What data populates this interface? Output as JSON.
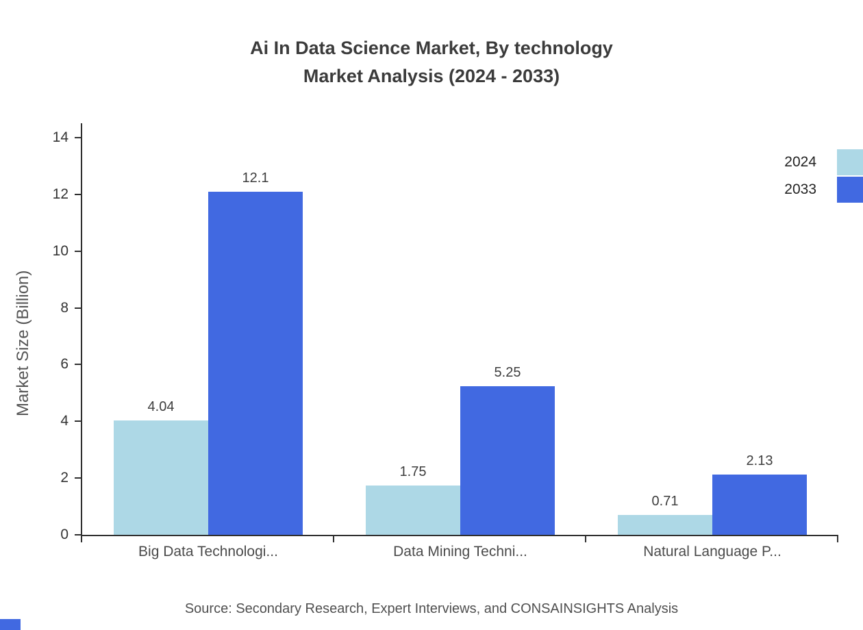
{
  "title": {
    "line1": "Ai In Data Science Market, By technology",
    "line2": "Market Analysis (2024 - 2033)"
  },
  "chart_data": {
    "type": "bar",
    "categories": [
      "Big Data Technologi...",
      "Data Mining Techni...",
      "Natural Language P..."
    ],
    "series": [
      {
        "name": "2024",
        "color": "#add8e6",
        "values": [
          4.04,
          1.75,
          0.71
        ]
      },
      {
        "name": "2033",
        "color": "#4169e1",
        "values": [
          12.1,
          5.25,
          2.13
        ]
      }
    ],
    "title": "Ai In Data Science Market, By technology Market Analysis (2024 - 2033)",
    "xlabel": "",
    "ylabel": "Market Size (Billion)",
    "ylim": [
      0,
      14
    ],
    "ytick_step": 2,
    "yticks": [
      0,
      2,
      4,
      6,
      8,
      10,
      12,
      14
    ],
    "grid": false,
    "legend_position": "top-right"
  },
  "source": "Source: Secondary Research, Expert Interviews, and CONSAINSIGHTS Analysis"
}
